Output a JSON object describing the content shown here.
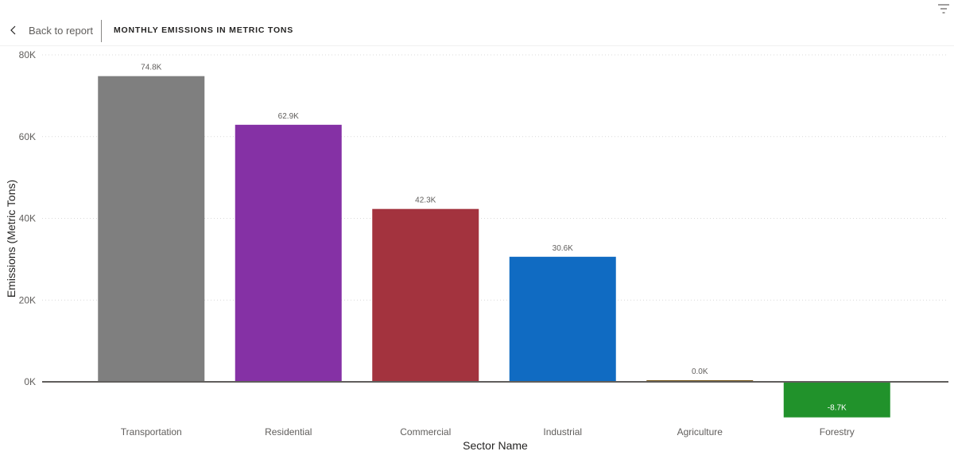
{
  "header": {
    "back_label": "Back to report",
    "title": "MONTHLY EMISSIONS IN METRIC TONS"
  },
  "icons": {
    "back": "chevron-left-icon",
    "filter": "filter-icon"
  },
  "chart_data": {
    "type": "bar",
    "title": "MONTHLY EMISSIONS IN METRIC TONS",
    "xlabel": "Sector Name",
    "ylabel": "Emissions (Metric Tons)",
    "categories": [
      "Transportation",
      "Residential",
      "Commercial",
      "Industrial",
      "Agriculture",
      "Forestry"
    ],
    "values": [
      74800,
      62900,
      42300,
      30600,
      0,
      -8700
    ],
    "data_labels": [
      "74.8K",
      "62.9K",
      "42.3K",
      "30.6K",
      "0.0K",
      "-8.7K"
    ],
    "colors": [
      "#7f7f7f",
      "#8531a5",
      "#a3333e",
      "#106bc2",
      "#7a5a1e",
      "#21922b"
    ],
    "ylim": [
      -10000,
      80000
    ],
    "yticks": [
      0,
      20000,
      40000,
      60000,
      80000
    ],
    "ytick_labels": [
      "0K",
      "20K",
      "40K",
      "60K",
      "80K"
    ],
    "grid": true,
    "legend": "none"
  }
}
